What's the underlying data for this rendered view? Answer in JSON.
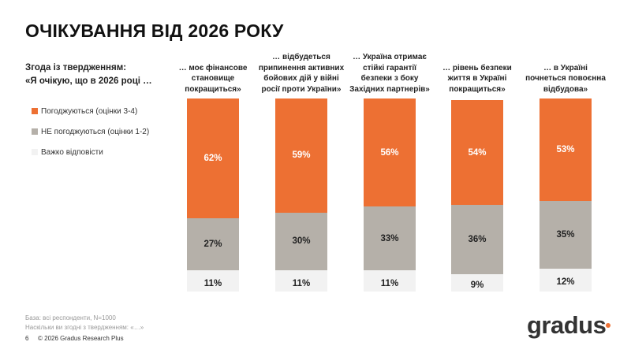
{
  "title": "ОЧІКУВАННЯ ВІД 2026 РОКУ",
  "question": {
    "line1": "Згода із твердженням:",
    "line2": "«Я очікую, що в 2026 році …"
  },
  "colors": {
    "agree": "#ED7033",
    "disagree": "#B5B0A9",
    "hard": "#F2F2F2",
    "accent": "#ED7033"
  },
  "chart_data": {
    "type": "bar",
    "stacked": true,
    "categories": [
      "… моє фінансове становище покращиться»",
      "… відбудеться припинення активних бойових дій у війні росії проти України»",
      "… Україна отримає стійкі гарантії безпеки з боку Західних партнерів»",
      "… рівень безпеки життя в Україні покращиться»",
      "… в Україні почнеться повоєнна відбудова»"
    ],
    "series": [
      {
        "name": "Погоджуються (оцінки 3-4)",
        "values": [
          62,
          59,
          56,
          54,
          53
        ]
      },
      {
        "name": "НЕ погоджуються (оцінки 1-2)",
        "values": [
          27,
          30,
          33,
          36,
          35
        ]
      },
      {
        "name": "Важко відповісти",
        "values": [
          11,
          11,
          11,
          9,
          12
        ]
      }
    ],
    "unit": "%",
    "legend": "left"
  },
  "footer": {
    "base": "База: всі респонденти, N=1000",
    "question": "Наскільки ви згодні з твердженням: «…»",
    "page": "6",
    "copyright": "© 2026 Gradus Research Plus"
  },
  "logo": "gradus"
}
